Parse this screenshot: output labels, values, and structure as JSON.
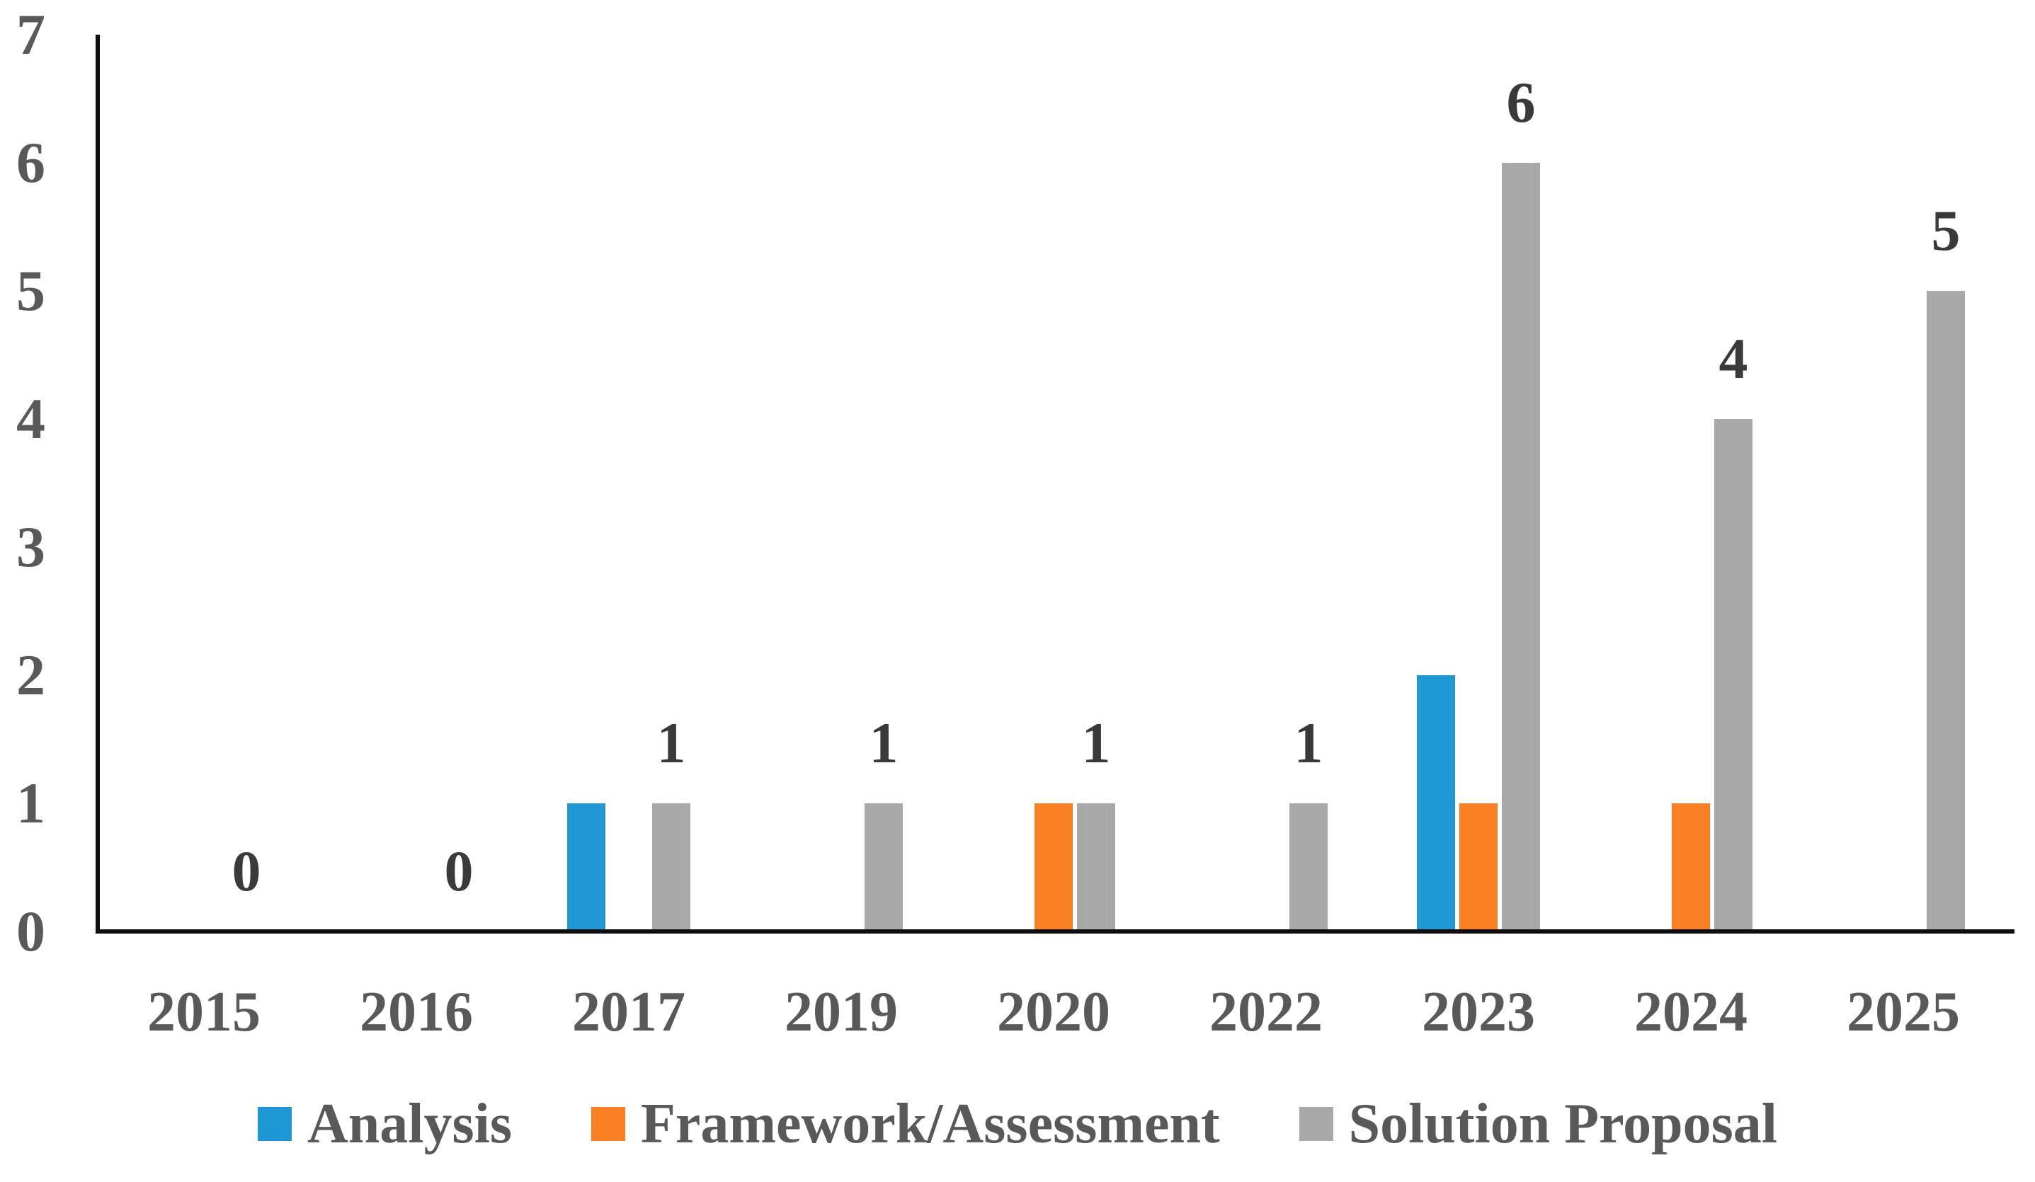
{
  "figure": {
    "background": "#ffffff"
  },
  "chart_data": {
    "type": "bar",
    "title": "",
    "xlabel": "",
    "ylabel": "",
    "categories": [
      "2015",
      "2016",
      "2017",
      "2019",
      "2020",
      "2022",
      "2023",
      "2024",
      "2025"
    ],
    "series": [
      {
        "name": "Analysis",
        "color": "#2196d5",
        "values": [
          0,
          0,
          1,
          0,
          0,
          0,
          2,
          0,
          0
        ]
      },
      {
        "name": "Framework/Assessment",
        "color": "#fb8023",
        "values": [
          0,
          0,
          0,
          0,
          1,
          0,
          1,
          1,
          0
        ]
      },
      {
        "name": "Solution Proposal",
        "color": "#a9a9a9",
        "values": [
          0,
          0,
          1,
          1,
          1,
          1,
          6,
          4,
          5
        ]
      }
    ],
    "data_labels": {
      "on_series": "Solution Proposal",
      "values": [
        "0",
        "0",
        "1",
        "1",
        "1",
        "1",
        "6",
        "4",
        "5"
      ]
    },
    "y_ticks": [
      "0",
      "1",
      "2",
      "3",
      "4",
      "5",
      "6",
      "7"
    ],
    "ylim": [
      0,
      7
    ],
    "grid": false,
    "legend_position": "bottom",
    "colors": {
      "axis_line": "#0d0d0d",
      "tick_label": "#595959",
      "data_label": "#3a3a3a",
      "legend_text": "#595959"
    }
  }
}
